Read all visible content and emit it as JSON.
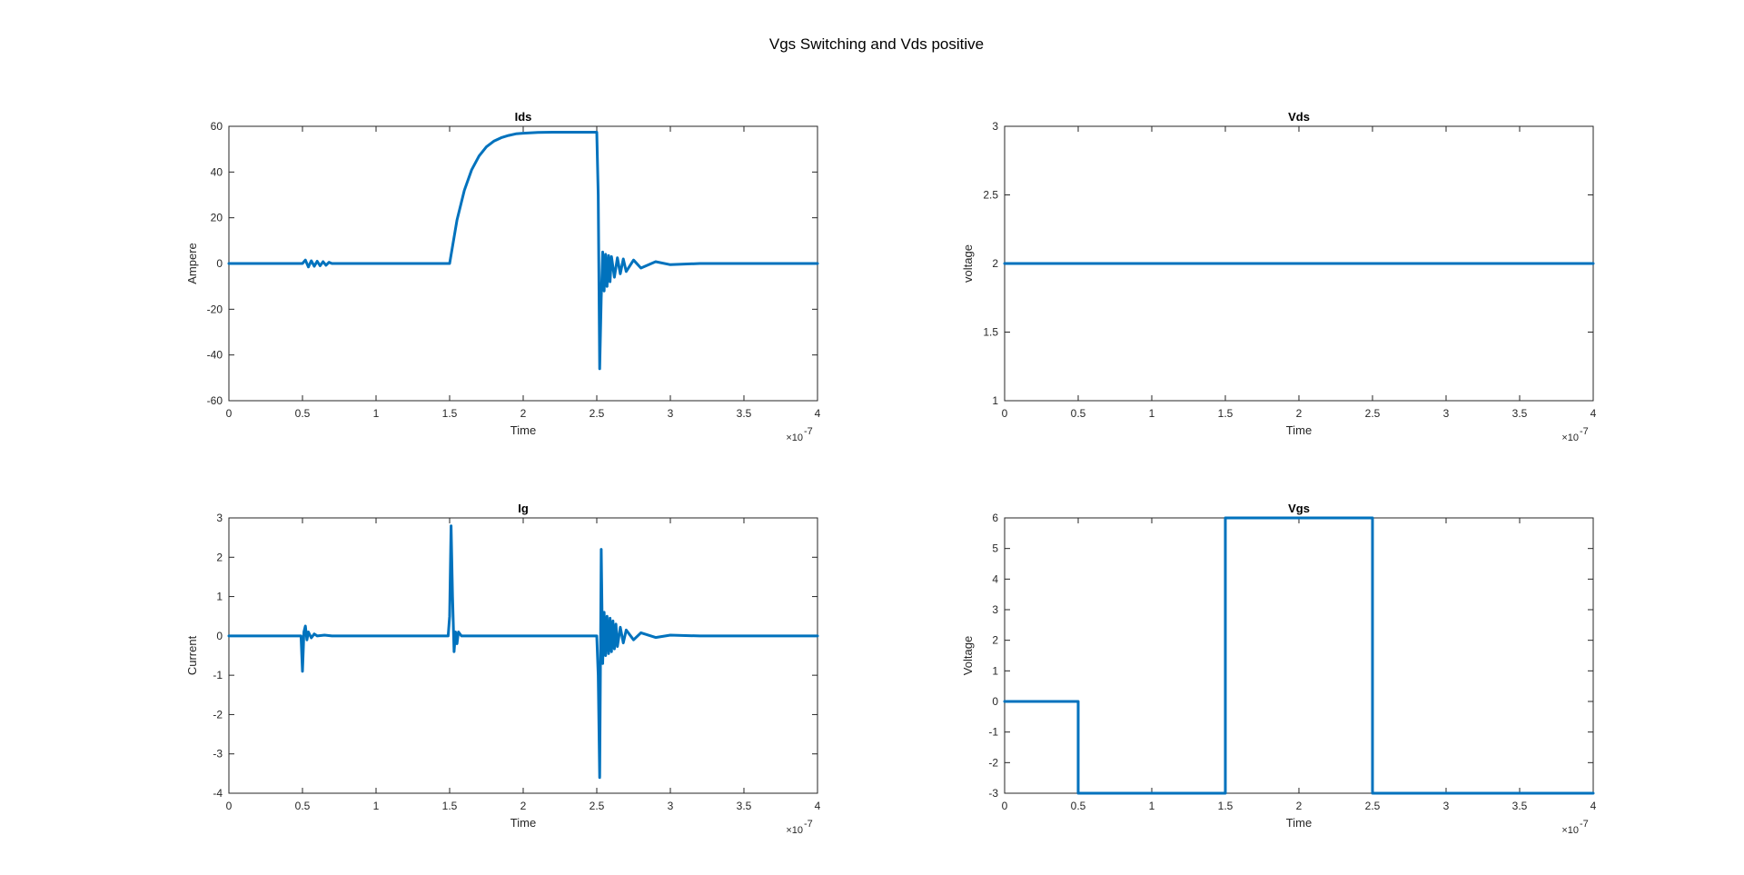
{
  "figure": {
    "title": "Vgs Switching and Vds positive",
    "line_color": "#0072BD"
  },
  "chart_data": [
    {
      "type": "line",
      "title": "Ids",
      "xlabel": "Time",
      "ylabel": "Ampere",
      "x_exponent": "-7",
      "xlim": [
        0,
        4
      ],
      "ylim": [
        -60,
        60
      ],
      "xticks": [
        0,
        0.5,
        1,
        1.5,
        2,
        2.5,
        3,
        3.5,
        4
      ],
      "yticks": [
        -60,
        -40,
        -20,
        0,
        20,
        40,
        60
      ],
      "grid": false,
      "series": [
        {
          "x": [
            0,
            0.5,
            0.52,
            0.54,
            0.56,
            0.58,
            0.6,
            0.62,
            0.64,
            0.66,
            0.68,
            0.7,
            0.8,
            1.0,
            1.5,
            1.55,
            1.6,
            1.65,
            1.7,
            1.75,
            1.8,
            1.85,
            1.9,
            1.95,
            2.0,
            2.1,
            2.2,
            2.3,
            2.4,
            2.5,
            2.51,
            2.52,
            2.53,
            2.54,
            2.55,
            2.56,
            2.57,
            2.58,
            2.59,
            2.6,
            2.62,
            2.64,
            2.66,
            2.68,
            2.7,
            2.75,
            2.8,
            2.9,
            3.0,
            3.2,
            4.0
          ],
          "y": [
            0,
            0,
            1.5,
            -1.5,
            1.2,
            -1.2,
            1,
            -1,
            0.8,
            -0.8,
            0.5,
            0,
            0,
            0,
            0,
            19,
            32,
            41,
            47,
            51,
            53.5,
            55,
            56,
            56.7,
            57,
            57.3,
            57.4,
            57.4,
            57.4,
            57.4,
            30,
            -46,
            -15,
            5,
            -12,
            4,
            -10,
            3.5,
            -8,
            3,
            -6,
            2.5,
            -4.5,
            2,
            -3.5,
            1.5,
            -2,
            0.8,
            -0.5,
            0,
            0
          ]
        }
      ]
    },
    {
      "type": "line",
      "title": "Vds",
      "xlabel": "Time",
      "ylabel": "voltage",
      "x_exponent": "-7",
      "xlim": [
        0,
        4
      ],
      "ylim": [
        1,
        3
      ],
      "xticks": [
        0,
        0.5,
        1,
        1.5,
        2,
        2.5,
        3,
        3.5,
        4
      ],
      "yticks": [
        1,
        1.5,
        2,
        2.5,
        3
      ],
      "grid": false,
      "series": [
        {
          "x": [
            0,
            4
          ],
          "y": [
            2,
            2
          ]
        }
      ]
    },
    {
      "type": "line",
      "title": "Ig",
      "xlabel": "Time",
      "ylabel": "Current",
      "x_exponent": "-7",
      "xlim": [
        0,
        4
      ],
      "ylim": [
        -4,
        3
      ],
      "xticks": [
        0,
        0.5,
        1,
        1.5,
        2,
        2.5,
        3,
        3.5,
        4
      ],
      "yticks": [
        -4,
        -3,
        -2,
        -1,
        0,
        1,
        2,
        3
      ],
      "grid": false,
      "series": [
        {
          "x": [
            0,
            0.49,
            0.5,
            0.51,
            0.52,
            0.53,
            0.54,
            0.56,
            0.58,
            0.6,
            0.65,
            0.7,
            1.49,
            1.5,
            1.51,
            1.52,
            1.53,
            1.54,
            1.55,
            1.56,
            1.58,
            1.6,
            2.5,
            2.51,
            2.52,
            2.53,
            2.54,
            2.55,
            2.56,
            2.57,
            2.58,
            2.59,
            2.6,
            2.61,
            2.62,
            2.63,
            2.64,
            2.66,
            2.68,
            2.7,
            2.75,
            2.8,
            2.9,
            3.0,
            3.2,
            4.0
          ],
          "y": [
            0,
            0,
            -0.9,
            0.1,
            0.25,
            -0.1,
            0.1,
            -0.05,
            0.05,
            0,
            0.02,
            0,
            0,
            0.5,
            2.8,
            1.0,
            -0.4,
            0.1,
            -0.2,
            0.1,
            0,
            0,
            0,
            -1.0,
            -3.6,
            2.2,
            -0.7,
            0.6,
            -0.5,
            0.5,
            -0.45,
            0.45,
            -0.4,
            0.38,
            -0.33,
            0.3,
            -0.27,
            0.22,
            -0.18,
            0.15,
            -0.1,
            0.08,
            -0.04,
            0.02,
            0,
            0
          ]
        }
      ]
    },
    {
      "type": "line",
      "title": "Vgs",
      "xlabel": "Time",
      "ylabel": "Voltage",
      "x_exponent": "-7",
      "xlim": [
        0,
        4
      ],
      "ylim": [
        -3,
        6
      ],
      "xticks": [
        0,
        0.5,
        1,
        1.5,
        2,
        2.5,
        3,
        3.5,
        4
      ],
      "yticks": [
        -3,
        -2,
        -1,
        0,
        1,
        2,
        3,
        4,
        5,
        6
      ],
      "grid": false,
      "series": [
        {
          "x": [
            0,
            0.5,
            0.5,
            1.5,
            1.5,
            2.5,
            2.5,
            4
          ],
          "y": [
            0,
            0,
            -3,
            -3,
            6,
            6,
            -3,
            -3
          ]
        }
      ]
    }
  ]
}
